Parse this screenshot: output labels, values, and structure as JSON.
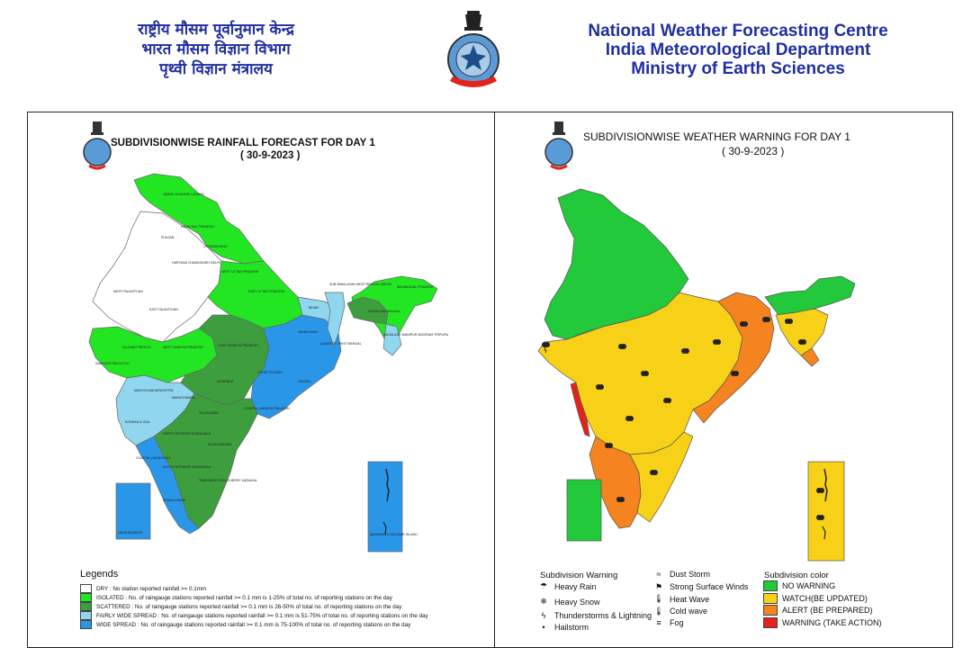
{
  "header": {
    "hindi_lines": [
      "राष्ट्रीय मौसम पूर्वानुमान केन्द्र",
      "भारत मौसम विज्ञान विभाग",
      "पृथ्वी विज्ञान मंत्रालय"
    ],
    "english_lines": [
      "National Weather Forecasting Centre",
      "India Meteorological Department",
      "Ministry of Earth Sciences"
    ]
  },
  "rainfall_map": {
    "title": "SUBDIVISIONWISE RAINFALL  FORECAST FOR DAY 1",
    "date": "(  30-9-2023 )",
    "legend_title": "Legends",
    "legend": [
      {
        "label": "DRY : No station reported rainfall >= 0.1mm",
        "color": "#ffffff"
      },
      {
        "label": "ISOLATED : No. of raingauge stations reported rainfall >= 0.1 mm is 1-25% of total no. of reporting stations on the day",
        "color": "#22e622"
      },
      {
        "label": "SCATTERED : No. of raingauge stations reported rainfall >= 0.1 mm is 26-50% of total no. of reporting stations on the day",
        "color": "#3c9e3c"
      },
      {
        "label": "FAIRLY WIDE SPREAD : No. of raingauge stations reported rainfall >= 0.1 mm is 51-75% of total no. of reporting stations on the day",
        "color": "#8fd6ee"
      },
      {
        "label": "WIDE SPREAD : No. of raingauge stations reported rainfall >= 0.1 mm is 75-100% of total no. of reporting stations on the day",
        "color": "#2a96e8"
      }
    ],
    "region_labels": [
      "JAMMU KASHMIR LADAKH",
      "HIMACHAL PRADESH",
      "UTTARAKHAND",
      "PUNJAB",
      "HARYANA CHANDIGARH DELHI",
      "WEST UTTAR PRADESH",
      "EAST UTTAR PRADESH",
      "WEST RAJASTHAN",
      "EAST RAJASTHAN",
      "BIHAR",
      "JHARKHAND",
      "SUB-HIMALAYAN WEST BENGAL SIKKIM",
      "GANGETIC WEST BENGAL",
      "ARUNACHAL PRADESH",
      "ASSAM MEGHALAYA",
      "NAGALAND MANIPUR MIZORAM TRIPURA",
      "GUJARAT REGION",
      "SAURASHTRA KUTCH",
      "WEST MADHYA PRADESH",
      "EAST MADHYA PRADESH",
      "CHHATTISGARH",
      "ODISHA",
      "VIDARBHA",
      "MADHYA MAHARASHTRA",
      "MARATHWADA",
      "KONKAN & GOA",
      "TELANGANA",
      "COASTAL ANDHRA PRADESH",
      "NORTH INTERIOR KARNATAKA",
      "SOUTH INTERIOR KARNATAKA",
      "COASTAL KARNATAKA",
      "RAYALASEEMA",
      "TAMILNADU PUDUCHERRY KARAIKAL",
      "KERALA MAHE",
      "LAKSHADWEEP",
      "ANDAMAN & NICOBAR ISLAND"
    ]
  },
  "warning_map": {
    "title": "SUBDIVISIONWISE WEATHER WARNING FOR DAY 1",
    "date": "(  30-9-2023 )",
    "subdivision_warning_title": "Subdivision Warning",
    "warnings_col1": [
      {
        "label": "Heavy Rain",
        "icon": "rain-cloud-icon",
        "glyph": "☂"
      },
      {
        "label": "Heavy Snow",
        "icon": "snow-cloud-icon",
        "glyph": "❄"
      },
      {
        "label": "Thunderstorms & Lightning",
        "icon": "thunder-cloud-icon",
        "glyph": "ϟ"
      },
      {
        "label": "Hailstorm",
        "icon": "hail-icon",
        "glyph": "•"
      }
    ],
    "warnings_col2": [
      {
        "label": "Dust Storm",
        "icon": "dust-storm-icon",
        "glyph": "≈"
      },
      {
        "label": "Strong Surface Winds",
        "icon": "wind-flag-icon",
        "glyph": "⚑"
      },
      {
        "label": "Heat Wave",
        "icon": "thermometer-hot-icon",
        "glyph": "🌡"
      },
      {
        "label": "Cold wave",
        "icon": "thermometer-cold-icon",
        "glyph": "🌡"
      },
      {
        "label": "Fog",
        "icon": "fog-icon",
        "glyph": "≡"
      }
    ],
    "color_legend_title": "Subdivision color",
    "color_legend": [
      {
        "label": "NO WARNING",
        "color": "#22c93a"
      },
      {
        "label": "WATCH(BE UPDATED)",
        "color": "#f7d117"
      },
      {
        "label": "ALERT (BE PREPARED)",
        "color": "#f5831f"
      },
      {
        "label": "WARNING (TAKE ACTION)",
        "color": "#e3231b"
      }
    ]
  }
}
